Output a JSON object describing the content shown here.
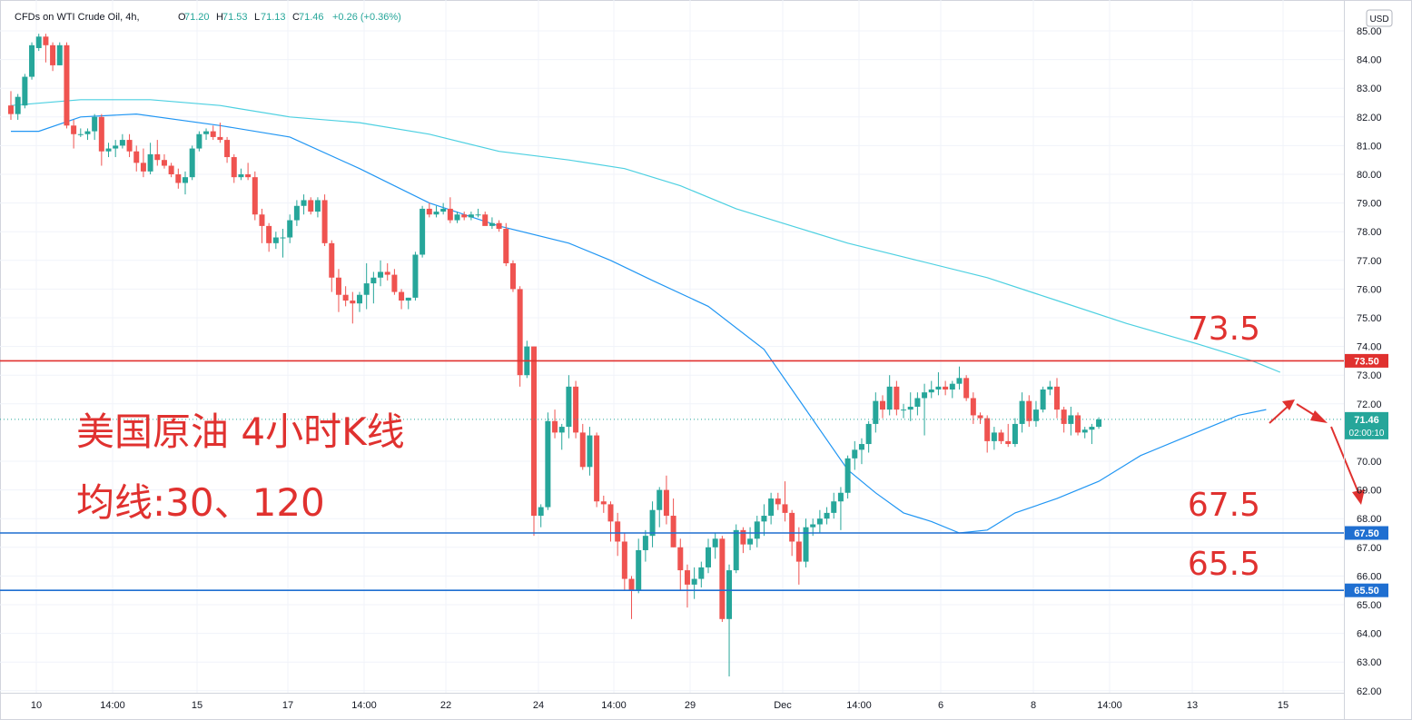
{
  "header": {
    "symbol": "CFDs on WTI Crude Oil, 4h,",
    "ohlc": [
      {
        "k": "O",
        "v": "71.20"
      },
      {
        "k": "H",
        "v": "71.53"
      },
      {
        "k": "L",
        "v": "71.13"
      },
      {
        "k": "C",
        "v": "71.46"
      }
    ],
    "change": "+0.26 (+0.36%)",
    "currency": "USD"
  },
  "annotations": {
    "title_line1": "美国原油 4小时K线",
    "title_line2": "均线:30、120",
    "level_labels": [
      "73.5",
      "67.5",
      "65.5"
    ]
  },
  "colors": {
    "bull": "#26a69a",
    "bear": "#ef5350",
    "resistance": "#e0312f",
    "support": "#1f6fd1",
    "ma30": "#2196f3",
    "ma120": "#4dd0e1",
    "annotation": "#e0312f"
  },
  "chart_data": {
    "type": "candlestick",
    "x_tick_labels": [
      "10",
      "14:00",
      "15",
      "17",
      "14:00",
      "22",
      "24",
      "14:00",
      "29",
      "Dec",
      "14:00",
      "6",
      "8",
      "14:00",
      "13",
      "15"
    ],
    "y_tick_labels": [
      "85.00",
      "84.00",
      "83.00",
      "82.00",
      "81.00",
      "80.00",
      "79.00",
      "78.00",
      "77.00",
      "76.00",
      "75.00",
      "74.00",
      "73.00",
      "72.00",
      "70.00",
      "69.00",
      "68.00",
      "67.00",
      "66.00",
      "65.00",
      "64.00",
      "63.00",
      "62.00"
    ],
    "ylim": [
      62,
      85.3
    ],
    "last_price": {
      "value": "71.46",
      "countdown": "02:00:10"
    },
    "horizontal_lines": [
      {
        "value": 73.5,
        "label": "73.50",
        "kind": "resistance"
      },
      {
        "value": 67.5,
        "label": "67.50",
        "kind": "support"
      },
      {
        "value": 65.5,
        "label": "65.50",
        "kind": "support"
      }
    ],
    "moving_averages": [
      {
        "period": 30,
        "points": [
          [
            0,
            81.5
          ],
          [
            4,
            81.5
          ],
          [
            10,
            82.0
          ],
          [
            18,
            82.1
          ],
          [
            30,
            81.7
          ],
          [
            40,
            81.3
          ],
          [
            50,
            80.2
          ],
          [
            60,
            79.0
          ],
          [
            70,
            78.2
          ],
          [
            80,
            77.6
          ],
          [
            86,
            77.0
          ],
          [
            92,
            76.3
          ],
          [
            100,
            75.4
          ],
          [
            108,
            73.9
          ],
          [
            114,
            71.8
          ],
          [
            120,
            69.7
          ],
          [
            124,
            68.9
          ],
          [
            128,
            68.2
          ],
          [
            132,
            67.9
          ],
          [
            136,
            67.5
          ],
          [
            140,
            67.6
          ],
          [
            144,
            68.2
          ],
          [
            150,
            68.7
          ],
          [
            156,
            69.3
          ],
          [
            162,
            70.2
          ],
          [
            168,
            70.8
          ],
          [
            172,
            71.2
          ],
          [
            176,
            71.6
          ],
          [
            180,
            71.8
          ]
        ]
      },
      {
        "period": 120,
        "points": [
          [
            0,
            82.4
          ],
          [
            10,
            82.6
          ],
          [
            20,
            82.6
          ],
          [
            30,
            82.4
          ],
          [
            40,
            82.0
          ],
          [
            50,
            81.8
          ],
          [
            60,
            81.4
          ],
          [
            70,
            80.8
          ],
          [
            80,
            80.5
          ],
          [
            88,
            80.2
          ],
          [
            96,
            79.6
          ],
          [
            104,
            78.8
          ],
          [
            112,
            78.2
          ],
          [
            120,
            77.6
          ],
          [
            130,
            77.0
          ],
          [
            140,
            76.4
          ],
          [
            150,
            75.6
          ],
          [
            160,
            74.8
          ],
          [
            170,
            74.1
          ],
          [
            178,
            73.5
          ],
          [
            182,
            73.1
          ]
        ]
      }
    ],
    "candles": [
      [
        82.4,
        82.9,
        81.9,
        82.1
      ],
      [
        82.1,
        82.8,
        81.9,
        82.7
      ],
      [
        82.4,
        83.5,
        82.3,
        83.4
      ],
      [
        83.4,
        84.6,
        83.3,
        84.5
      ],
      [
        84.4,
        84.9,
        84.3,
        84.8
      ],
      [
        84.8,
        84.9,
        83.9,
        84.5
      ],
      [
        84.5,
        84.6,
        83.6,
        83.8
      ],
      [
        83.8,
        84.6,
        83.8,
        84.5
      ],
      [
        84.5,
        84.6,
        81.6,
        81.7
      ],
      [
        81.7,
        81.9,
        80.9,
        81.4
      ],
      [
        81.4,
        81.6,
        81.3,
        81.4
      ],
      [
        81.4,
        81.6,
        81.2,
        81.5
      ],
      [
        81.5,
        82.1,
        81.2,
        82.0
      ],
      [
        82.0,
        82.1,
        80.3,
        80.8
      ],
      [
        80.8,
        81.1,
        80.6,
        80.9
      ],
      [
        80.9,
        81.2,
        80.6,
        81.0
      ],
      [
        81.0,
        81.4,
        80.9,
        81.2
      ],
      [
        81.2,
        81.4,
        80.6,
        80.8
      ],
      [
        80.8,
        81.0,
        80.1,
        80.4
      ],
      [
        80.4,
        80.9,
        79.9,
        80.1
      ],
      [
        80.1,
        81.1,
        80.0,
        80.7
      ],
      [
        80.7,
        81.2,
        80.3,
        80.5
      ],
      [
        80.5,
        80.7,
        80.2,
        80.3
      ],
      [
        80.3,
        80.4,
        79.9,
        80.0
      ],
      [
        80.0,
        80.2,
        79.5,
        79.7
      ],
      [
        79.7,
        80.1,
        79.3,
        79.9
      ],
      [
        79.9,
        81.0,
        79.8,
        80.9
      ],
      [
        80.9,
        81.5,
        80.8,
        81.4
      ],
      [
        81.4,
        81.6,
        81.2,
        81.5
      ],
      [
        81.5,
        81.7,
        81.2,
        81.3
      ],
      [
        81.3,
        81.8,
        81.1,
        81.2
      ],
      [
        81.2,
        81.3,
        80.4,
        80.6
      ],
      [
        80.6,
        80.7,
        79.7,
        79.9
      ],
      [
        79.9,
        80.2,
        79.8,
        80.0
      ],
      [
        80.0,
        80.4,
        79.8,
        79.9
      ],
      [
        79.9,
        80.1,
        78.4,
        78.6
      ],
      [
        78.6,
        78.8,
        77.6,
        78.2
      ],
      [
        78.2,
        78.3,
        77.3,
        77.6
      ],
      [
        77.6,
        78.0,
        77.4,
        77.8
      ],
      [
        77.8,
        78.1,
        77.1,
        77.8
      ],
      [
        77.8,
        78.6,
        77.6,
        78.4
      ],
      [
        78.4,
        79.1,
        78.2,
        78.9
      ],
      [
        78.9,
        79.3,
        78.6,
        79.1
      ],
      [
        79.1,
        79.2,
        78.6,
        78.7
      ],
      [
        78.7,
        79.2,
        78.5,
        79.1
      ],
      [
        79.1,
        79.3,
        77.5,
        77.6
      ],
      [
        77.6,
        77.7,
        75.9,
        76.4
      ],
      [
        76.4,
        76.7,
        75.2,
        75.8
      ],
      [
        75.8,
        76.1,
        75.4,
        75.6
      ],
      [
        75.6,
        75.9,
        74.8,
        75.5
      ],
      [
        75.5,
        75.9,
        75.2,
        75.8
      ],
      [
        75.8,
        76.9,
        75.3,
        76.2
      ],
      [
        76.2,
        76.6,
        75.5,
        76.4
      ],
      [
        76.4,
        77.0,
        76.1,
        76.6
      ],
      [
        76.6,
        76.9,
        76.3,
        76.5
      ],
      [
        76.5,
        76.7,
        75.8,
        75.9
      ],
      [
        75.9,
        76.0,
        75.3,
        75.6
      ],
      [
        75.6,
        75.7,
        75.3,
        75.7
      ],
      [
        75.7,
        77.3,
        75.6,
        77.2
      ],
      [
        77.2,
        78.9,
        77.1,
        78.8
      ],
      [
        78.8,
        79.0,
        78.5,
        78.6
      ],
      [
        78.6,
        78.9,
        78.5,
        78.7
      ],
      [
        78.7,
        79.0,
        78.6,
        78.8
      ],
      [
        78.8,
        79.2,
        78.3,
        78.4
      ],
      [
        78.4,
        78.7,
        78.3,
        78.6
      ],
      [
        78.6,
        78.7,
        78.4,
        78.5
      ],
      [
        78.5,
        78.7,
        78.4,
        78.6
      ],
      [
        78.6,
        78.8,
        78.5,
        78.6
      ],
      [
        78.6,
        78.7,
        78.3,
        78.2
      ],
      [
        78.2,
        78.5,
        78.1,
        78.3
      ],
      [
        78.3,
        78.4,
        78.0,
        78.1
      ],
      [
        78.1,
        78.3,
        76.8,
        76.9
      ],
      [
        76.9,
        77.0,
        75.9,
        76.0
      ],
      [
        76.0,
        76.1,
        72.6,
        73.0
      ],
      [
        73.0,
        74.2,
        72.9,
        74.0
      ],
      [
        74.0,
        74.0,
        67.4,
        68.1
      ],
      [
        68.1,
        68.5,
        67.7,
        68.4
      ],
      [
        68.4,
        71.7,
        68.3,
        71.4
      ],
      [
        71.4,
        71.8,
        70.8,
        71.0
      ],
      [
        71.0,
        71.3,
        70.4,
        71.2
      ],
      [
        71.2,
        73.0,
        70.8,
        72.6
      ],
      [
        72.6,
        72.8,
        70.8,
        71.0
      ],
      [
        71.0,
        71.3,
        69.7,
        69.8
      ],
      [
        69.8,
        71.2,
        69.5,
        70.9
      ],
      [
        70.9,
        71.0,
        68.4,
        68.6
      ],
      [
        68.6,
        68.8,
        68.2,
        68.5
      ],
      [
        68.5,
        68.6,
        67.2,
        67.9
      ],
      [
        67.9,
        68.2,
        66.7,
        67.2
      ],
      [
        67.2,
        67.5,
        65.5,
        65.9
      ],
      [
        65.9,
        66.0,
        64.5,
        65.5
      ],
      [
        65.5,
        67.3,
        65.4,
        66.9
      ],
      [
        66.9,
        67.6,
        66.5,
        67.4
      ],
      [
        67.4,
        68.6,
        67.0,
        68.3
      ],
      [
        68.3,
        69.1,
        67.7,
        69.0
      ],
      [
        69.0,
        69.5,
        67.8,
        68.1
      ],
      [
        68.1,
        68.7,
        67.0,
        67.0
      ],
      [
        67.0,
        67.3,
        65.5,
        66.2
      ],
      [
        66.2,
        66.4,
        64.9,
        65.7
      ],
      [
        65.7,
        66.3,
        65.2,
        65.9
      ],
      [
        65.9,
        66.5,
        65.6,
        66.3
      ],
      [
        66.3,
        67.3,
        66.1,
        67.0
      ],
      [
        67.0,
        67.5,
        66.6,
        67.3
      ],
      [
        67.3,
        67.4,
        64.4,
        64.5
      ],
      [
        64.5,
        66.4,
        62.5,
        66.2
      ],
      [
        66.2,
        67.8,
        66.1,
        67.6
      ],
      [
        67.6,
        67.7,
        66.8,
        67.1
      ],
      [
        67.1,
        67.7,
        66.9,
        67.3
      ],
      [
        67.3,
        68.1,
        67.0,
        67.9
      ],
      [
        67.9,
        68.5,
        67.4,
        68.1
      ],
      [
        68.1,
        68.9,
        67.8,
        68.7
      ],
      [
        68.7,
        68.9,
        68.3,
        68.5
      ],
      [
        68.5,
        69.3,
        67.9,
        68.2
      ],
      [
        68.2,
        68.3,
        66.7,
        67.2
      ],
      [
        67.2,
        67.7,
        65.7,
        66.5
      ],
      [
        66.5,
        68.0,
        66.3,
        67.7
      ],
      [
        67.7,
        68.0,
        67.4,
        67.8
      ],
      [
        67.8,
        68.3,
        67.5,
        68.0
      ],
      [
        68.0,
        68.4,
        67.8,
        68.2
      ],
      [
        68.2,
        68.9,
        68.0,
        68.6
      ],
      [
        68.6,
        69.1,
        67.6,
        68.9
      ],
      [
        68.9,
        70.2,
        68.7,
        70.1
      ],
      [
        70.1,
        70.7,
        69.7,
        70.4
      ],
      [
        70.4,
        70.8,
        69.9,
        70.6
      ],
      [
        70.6,
        71.4,
        70.3,
        71.3
      ],
      [
        71.3,
        72.4,
        71.0,
        72.1
      ],
      [
        72.1,
        72.3,
        71.5,
        71.8
      ],
      [
        71.8,
        73.0,
        71.6,
        72.6
      ],
      [
        72.6,
        72.8,
        71.6,
        71.8
      ],
      [
        71.8,
        72.0,
        71.5,
        71.8
      ],
      [
        71.8,
        72.4,
        71.4,
        71.9
      ],
      [
        71.9,
        72.4,
        71.6,
        72.2
      ],
      [
        72.2,
        72.7,
        70.9,
        72.4
      ],
      [
        72.4,
        72.8,
        72.2,
        72.5
      ],
      [
        72.5,
        73.1,
        72.3,
        72.6
      ],
      [
        72.6,
        72.8,
        72.3,
        72.5
      ],
      [
        72.5,
        72.8,
        72.2,
        72.7
      ],
      [
        72.7,
        73.3,
        72.5,
        72.9
      ],
      [
        72.9,
        73.0,
        72.1,
        72.2
      ],
      [
        72.2,
        72.4,
        71.3,
        71.6
      ],
      [
        71.6,
        71.7,
        71.3,
        71.5
      ],
      [
        71.5,
        71.6,
        70.3,
        70.7
      ],
      [
        70.7,
        71.2,
        70.4,
        71.0
      ],
      [
        71.0,
        71.1,
        70.6,
        70.7
      ],
      [
        70.7,
        71.3,
        70.5,
        70.6
      ],
      [
        70.6,
        71.5,
        70.5,
        71.3
      ],
      [
        71.3,
        72.4,
        71.0,
        72.1
      ],
      [
        72.1,
        72.3,
        71.2,
        71.4
      ],
      [
        71.4,
        72.1,
        71.2,
        71.8
      ],
      [
        71.8,
        72.6,
        71.7,
        72.5
      ],
      [
        72.5,
        72.8,
        72.3,
        72.6
      ],
      [
        72.6,
        72.9,
        71.5,
        71.8
      ],
      [
        71.8,
        71.9,
        71.0,
        71.3
      ],
      [
        71.3,
        71.9,
        70.9,
        71.6
      ],
      [
        71.6,
        71.7,
        70.9,
        71.0
      ],
      [
        71.0,
        71.2,
        70.8,
        71.1
      ],
      [
        71.1,
        71.3,
        70.6,
        71.2
      ],
      [
        71.2,
        71.53,
        71.13,
        71.46
      ]
    ]
  }
}
